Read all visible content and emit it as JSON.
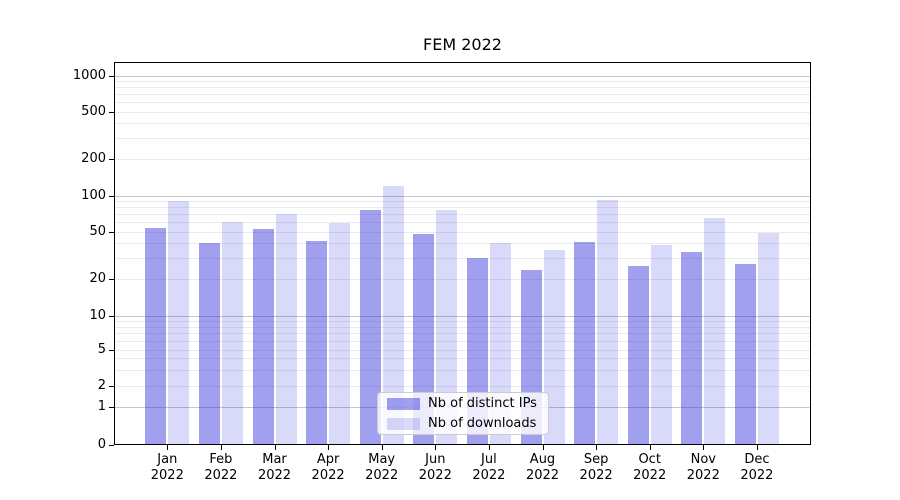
{
  "title": "FEM 2022",
  "chart_data": {
    "type": "bar",
    "title": "FEM 2022",
    "categories": [
      {
        "month": "Jan",
        "year": "2022"
      },
      {
        "month": "Feb",
        "year": "2022"
      },
      {
        "month": "Mar",
        "year": "2022"
      },
      {
        "month": "Apr",
        "year": "2022"
      },
      {
        "month": "May",
        "year": "2022"
      },
      {
        "month": "Jun",
        "year": "2022"
      },
      {
        "month": "Jul",
        "year": "2022"
      },
      {
        "month": "Aug",
        "year": "2022"
      },
      {
        "month": "Sep",
        "year": "2022"
      },
      {
        "month": "Oct",
        "year": "2022"
      },
      {
        "month": "Nov",
        "year": "2022"
      },
      {
        "month": "Dec",
        "year": "2022"
      }
    ],
    "series": [
      {
        "name": "Nb of distinct IPs",
        "color": "#a0a0ef",
        "fill": "rgba(45,45,220,0.45)",
        "values": [
          54,
          40,
          53,
          42,
          75,
          48,
          30,
          24,
          41,
          26,
          34,
          27
        ]
      },
      {
        "name": "Nb of downloads",
        "color": "#d9d9f9",
        "fill": "rgba(45,45,220,0.18)",
        "values": [
          90,
          60,
          70,
          59,
          120,
          75,
          40,
          35,
          92,
          39,
          65,
          49
        ]
      }
    ],
    "yscale": "symlog",
    "ylim": [
      0,
      1300
    ],
    "yticks": [
      0,
      1,
      2,
      5,
      10,
      20,
      50,
      100,
      200,
      500,
      1000
    ],
    "grid": "horizontal major and minor gridlines",
    "legend_position": "lower center"
  },
  "colors": {
    "background": "#ffffff",
    "grid_major": "#c6c6c6",
    "grid_minor": "#ebebeb",
    "spine": "#000000",
    "text": "#000000",
    "legend_border": "#cccccc"
  }
}
